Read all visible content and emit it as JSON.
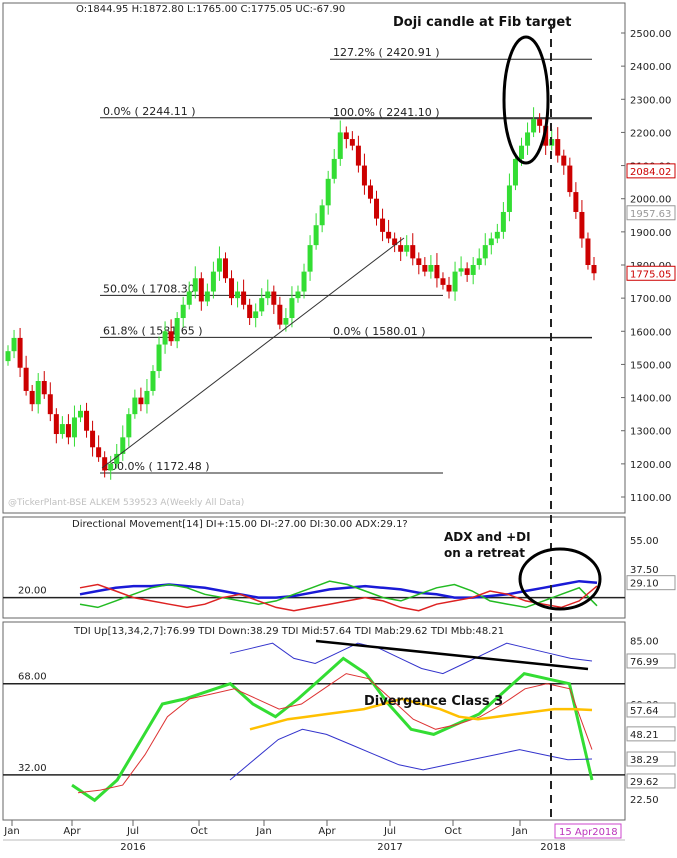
{
  "header": {
    "ohlc": "O:1844.95  H:1872.80  L:1765.00  C:1775.05  UC:-67.90"
  },
  "watermark": "@TickerPlant-BSE ALKEM 539523 A(Weekly All Data)",
  "colors": {
    "up": "#33dd33",
    "down": "#cc0000",
    "adx": "#1a1ad6",
    "di_plus": "#22bb22",
    "di_minus": "#dd2222",
    "tdi_price": "#33dd33",
    "tdi_signal": "#dd3333",
    "tdi_mid": "#ffc000",
    "tdi_band": "#3333cc",
    "annotation": "#111111"
  },
  "chart_data": [
    {
      "type": "candlestick",
      "panel": "price",
      "ylim": [
        1100,
        2500
      ],
      "yticks": [
        "2500.00",
        "2400.00",
        "2300.00",
        "2200.00",
        "2100.00",
        "2000.00",
        "1900.00",
        "1800.00",
        "1700.00",
        "1600.00",
        "1500.00",
        "1400.00",
        "1300.00",
        "1200.00",
        "1100.00"
      ],
      "xticks": [
        "Jan",
        "Apr",
        "Jul",
        "Oct",
        "Jan",
        "Apr",
        "Jul",
        "Oct",
        "Jan"
      ],
      "year_labels": [
        "2016",
        "2017",
        "2018"
      ],
      "price_badges": [
        {
          "label": "2084.02",
          "value": 2084.02,
          "color": "#cc0000"
        },
        {
          "label": "1957.63",
          "value": 1957.63,
          "color": "#999999"
        },
        {
          "label": "1775.05",
          "value": 1775.05,
          "color": "#cc0000"
        }
      ],
      "fib_levels": [
        {
          "label": "127.2% ( 2420.91 )",
          "value": 2420.91
        },
        {
          "label": "0.0% ( 2244.11 )",
          "value": 2244.11
        },
        {
          "label": "100.0% ( 2241.10 )",
          "value": 2241.1
        },
        {
          "label": "50.0% ( 1708.30 )",
          "value": 1708.3
        },
        {
          "label": "61.8% ( 1581.65 )",
          "value": 1581.65
        },
        {
          "label": "0.0% ( 1580.01 )",
          "value": 1580.01
        },
        {
          "label": "100.0% ( 1172.48 )",
          "value": 1172.48
        }
      ],
      "annotations": {
        "doji": "Doji candle at Fib target"
      },
      "series": [
        {
          "name": "candles",
          "closes": [
            1540,
            1580,
            1490,
            1420,
            1380,
            1450,
            1410,
            1350,
            1290,
            1320,
            1280,
            1340,
            1360,
            1300,
            1250,
            1220,
            1180,
            1200,
            1230,
            1280,
            1350,
            1400,
            1380,
            1420,
            1480,
            1560,
            1600,
            1570,
            1640,
            1680,
            1720,
            1760,
            1690,
            1720,
            1780,
            1820,
            1760,
            1700,
            1720,
            1680,
            1640,
            1660,
            1700,
            1720,
            1680,
            1620,
            1640,
            1700,
            1720,
            1780,
            1860,
            1920,
            1980,
            2060,
            2120,
            2200,
            2180,
            2160,
            2100,
            2040,
            2000,
            1940,
            1900,
            1880,
            1860,
            1840,
            1860,
            1820,
            1800,
            1780,
            1800,
            1760,
            1740,
            1720,
            1780,
            1790,
            1770,
            1800,
            1820,
            1860,
            1880,
            1900,
            1960,
            2040,
            2120,
            2160,
            2200,
            2240,
            2220,
            2160,
            2180,
            2130,
            2100,
            2020,
            1960,
            1880,
            1800,
            1775.05
          ]
        }
      ]
    },
    {
      "type": "line",
      "panel": "dmi",
      "title": "Directional Movement[14]  DI+:15.00  DI-:27.00  DI:30.00  ADX:29.1?",
      "ylim": [
        10,
        60
      ],
      "yticks": [
        "55.00",
        "37.50"
      ],
      "ref_level": {
        "label": "20.00",
        "value": 20
      },
      "badge": {
        "label": "29.10",
        "value": 29.1
      },
      "annotation": "ADX and +DI on a retreat",
      "series": [
        {
          "name": "ADX",
          "values": [
            22,
            24,
            26,
            27,
            27,
            28,
            27,
            26,
            24,
            22,
            20,
            20,
            21,
            23,
            25,
            26,
            27,
            26,
            25,
            23,
            22,
            20,
            20,
            21,
            22,
            24,
            26,
            28,
            30,
            29
          ]
        },
        {
          "name": "DI+",
          "values": [
            16,
            14,
            18,
            22,
            26,
            28,
            26,
            22,
            20,
            18,
            16,
            18,
            22,
            26,
            30,
            28,
            24,
            20,
            18,
            22,
            26,
            28,
            24,
            18,
            16,
            14,
            18,
            22,
            26,
            15
          ]
        },
        {
          "name": "DI-",
          "values": [
            26,
            28,
            24,
            20,
            18,
            16,
            14,
            16,
            20,
            22,
            18,
            14,
            12,
            14,
            16,
            18,
            20,
            18,
            14,
            12,
            16,
            18,
            20,
            24,
            22,
            18,
            16,
            14,
            18,
            27
          ]
        }
      ]
    },
    {
      "type": "line",
      "panel": "tdi",
      "title": "TDI Up[13,34,2,7]:76.99  TDI Down:38.29  TDI Mid:57.64  TDI Mab:29.62  TDI Mbb:48.21",
      "ylim": [
        15,
        90
      ],
      "yticks": [
        "85.00",
        "60.00",
        "47.50",
        "22.50"
      ],
      "ref_levels": [
        {
          "label": "68.00",
          "value": 68
        },
        {
          "label": "32.00",
          "value": 32
        }
      ],
      "badges": [
        {
          "label": "76.99",
          "value": 76.99
        },
        {
          "label": "57.64",
          "value": 57.64
        },
        {
          "label": "48.21",
          "value": 48.21
        },
        {
          "label": "38.29",
          "value": 38.29
        },
        {
          "label": "29.62",
          "value": 29.62
        }
      ],
      "annotation": "Divergence Class 3",
      "date_badge": "15 Apr2018",
      "series": [
        {
          "name": "TDI Price",
          "values": [
            28,
            22,
            30,
            45,
            60,
            62,
            65,
            68,
            60,
            55,
            62,
            70,
            78,
            72,
            60,
            50,
            48,
            52,
            56,
            64,
            72,
            70,
            68,
            30
          ]
        },
        {
          "name": "TDI Signal",
          "values": [
            25,
            26,
            28,
            40,
            55,
            62,
            64,
            66,
            62,
            58,
            60,
            66,
            72,
            70,
            62,
            54,
            50,
            52,
            55,
            60,
            66,
            68,
            66,
            42
          ]
        },
        {
          "name": "TDI Mid",
          "values": [
            50,
            52,
            54,
            55,
            56,
            57,
            58,
            60,
            62,
            60,
            58,
            55,
            54,
            55,
            56,
            57,
            58,
            58,
            57.64
          ]
        },
        {
          "name": "TDI Up",
          "values": [
            80,
            82,
            84,
            78,
            76,
            80,
            84,
            82,
            78,
            74,
            72,
            76,
            80,
            84,
            82,
            80,
            78,
            76.99
          ]
        },
        {
          "name": "TDI Down",
          "values": [
            30,
            38,
            46,
            50,
            48,
            44,
            40,
            36,
            34,
            36,
            38,
            40,
            42,
            40,
            38,
            38.29
          ]
        }
      ]
    }
  ]
}
